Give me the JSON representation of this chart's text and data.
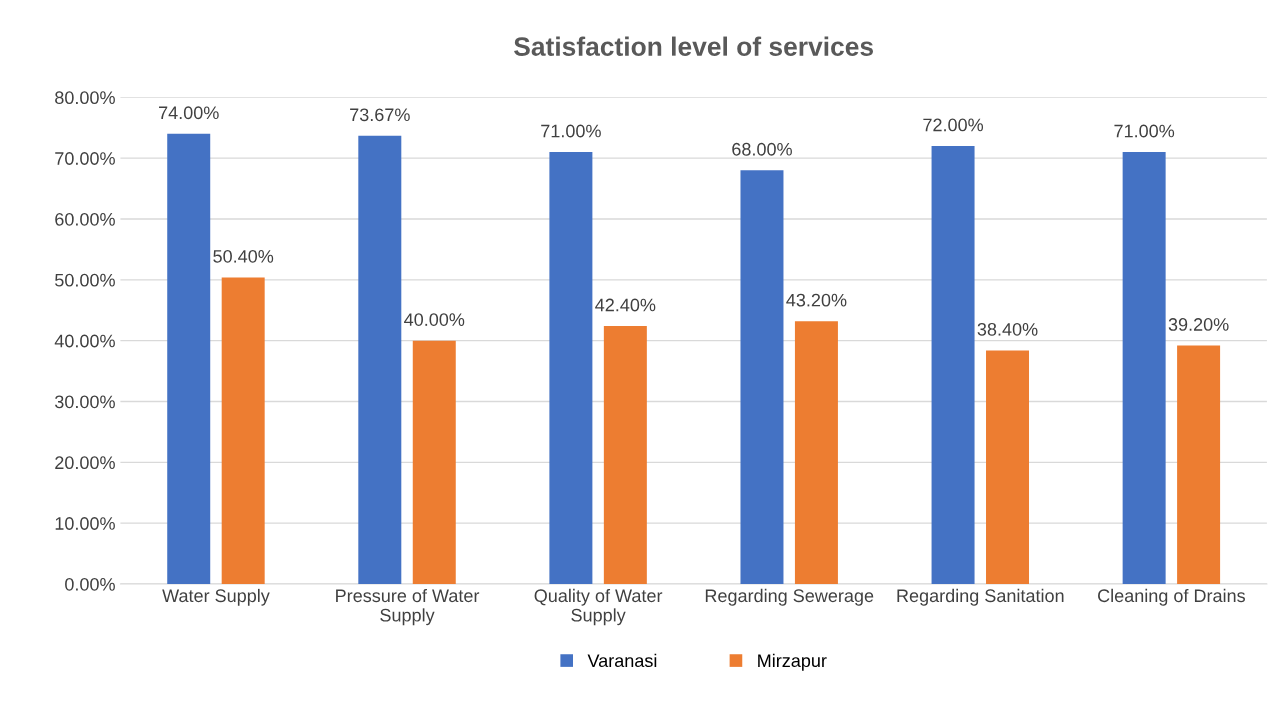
{
  "chart_data": {
    "type": "bar",
    "title": "Satisfaction level of services",
    "categories": [
      "Water Supply",
      "Pressure of Water Supply",
      "Quality of Water Supply",
      "Regarding Sewerage",
      "Regarding Sanitation",
      "Cleaning of Drains"
    ],
    "series": [
      {
        "name": "Varanasi",
        "color": "#4472c4",
        "values": [
          74.0,
          73.67,
          71.0,
          68.0,
          72.0,
          71.0
        ],
        "value_labels": [
          "74.00%",
          "73.67%",
          "71.00%",
          "68.00%",
          "72.00%",
          "71.00%"
        ]
      },
      {
        "name": "Mirzapur",
        "color": "#ed7d31",
        "values": [
          50.4,
          40.0,
          42.4,
          43.2,
          38.4,
          39.2
        ],
        "value_labels": [
          "50.40%",
          "40.00%",
          "42.40%",
          "43.20%",
          "38.40%",
          "39.20%"
        ]
      }
    ],
    "ylim": [
      0,
      80
    ],
    "yticks": [
      {
        "value": 0,
        "label": "0.00%"
      },
      {
        "value": 10,
        "label": "10.00%"
      },
      {
        "value": 20,
        "label": "20.00%"
      },
      {
        "value": 30,
        "label": "30.00%"
      },
      {
        "value": 40,
        "label": "40.00%"
      },
      {
        "value": 50,
        "label": "50.00%"
      },
      {
        "value": 60,
        "label": "60.00%"
      },
      {
        "value": 70,
        "label": "70.00%"
      },
      {
        "value": 80,
        "label": "80.00%"
      }
    ],
    "grid": "y",
    "legend": "bottom"
  }
}
